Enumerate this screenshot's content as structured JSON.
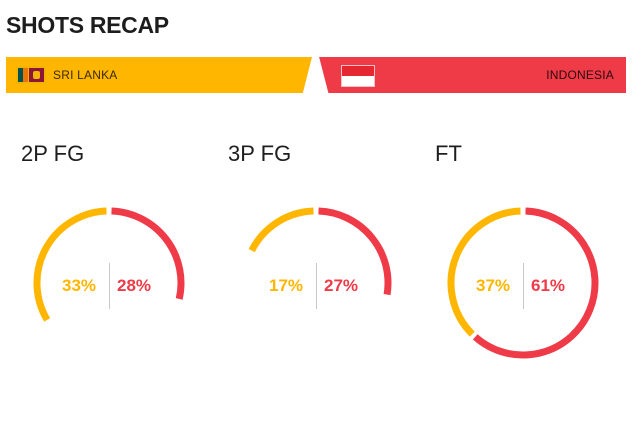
{
  "title": "SHOTS RECAP",
  "teams": {
    "home": {
      "name": "SRI LANKA",
      "flag_icon": "sri-lanka-flag-icon",
      "color": "#ffb600"
    },
    "away": {
      "name": "INDONESIA",
      "flag_icon": "indonesia-flag-icon",
      "color": "#ef3b48"
    }
  },
  "stats": [
    {
      "label": "2P FG",
      "home_pct": "33%",
      "away_pct": "28%",
      "home_value": 33,
      "away_value": 28
    },
    {
      "label": "3P FG",
      "home_pct": "17%",
      "away_pct": "27%",
      "home_value": 17,
      "away_value": 27
    },
    {
      "label": "FT",
      "home_pct": "37%",
      "away_pct": "61%",
      "home_value": 37,
      "away_value": 61
    }
  ]
}
